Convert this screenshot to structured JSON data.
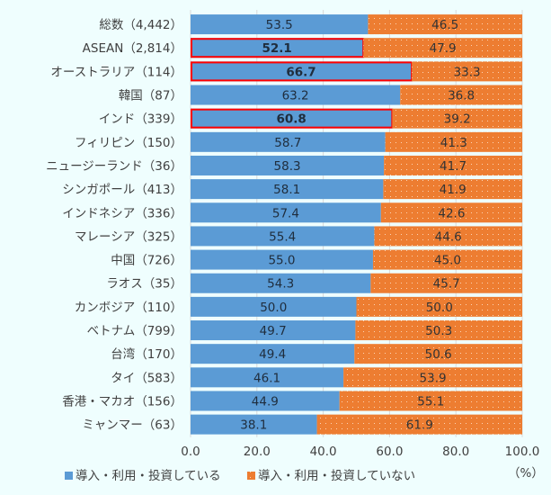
{
  "chart_data": {
    "type": "bar",
    "orientation": "horizontal",
    "stacked": true,
    "categories": [
      "総数（4,442）",
      "ASEAN（2,814）",
      "オーストラリア（114）",
      "韓国（87）",
      "インド（339）",
      "フィリピン（150）",
      "ニュージーランド（36）",
      "シンガポール（413）",
      "インドネシア（336）",
      "マレーシア（325）",
      "中国（726）",
      "ラオス（35）",
      "カンボジア（110）",
      "ベトナム（799）",
      "台湾（170）",
      "タイ（583）",
      "香港・マカオ（156）",
      "ミャンマー（63）"
    ],
    "series": [
      {
        "name": "導入・利用・投資している",
        "color": "#5b9bd5",
        "values": [
          53.5,
          52.1,
          66.7,
          63.2,
          60.8,
          58.7,
          58.3,
          58.1,
          57.4,
          55.4,
          55.0,
          54.3,
          50.0,
          49.7,
          49.4,
          46.1,
          44.9,
          38.1
        ]
      },
      {
        "name": "導入・利用・投資していない",
        "color": "#ed7d31",
        "pattern": "dotted",
        "values": [
          46.5,
          47.9,
          33.3,
          36.8,
          39.2,
          41.3,
          41.7,
          41.9,
          42.6,
          44.6,
          45.0,
          45.7,
          50.0,
          50.3,
          50.6,
          53.9,
          55.1,
          61.9
        ]
      }
    ],
    "highlighted_categories": [
      "ASEAN（2,814）",
      "オーストラリア（114）",
      "インド（339）"
    ],
    "highlight_color": "#ff0000",
    "xlim": [
      0,
      100
    ],
    "xticks": [
      "0.0",
      "20.0",
      "40.0",
      "60.0",
      "80.0",
      "100.0"
    ],
    "xunit": "（%）",
    "grid": true,
    "legend": "bottom"
  }
}
